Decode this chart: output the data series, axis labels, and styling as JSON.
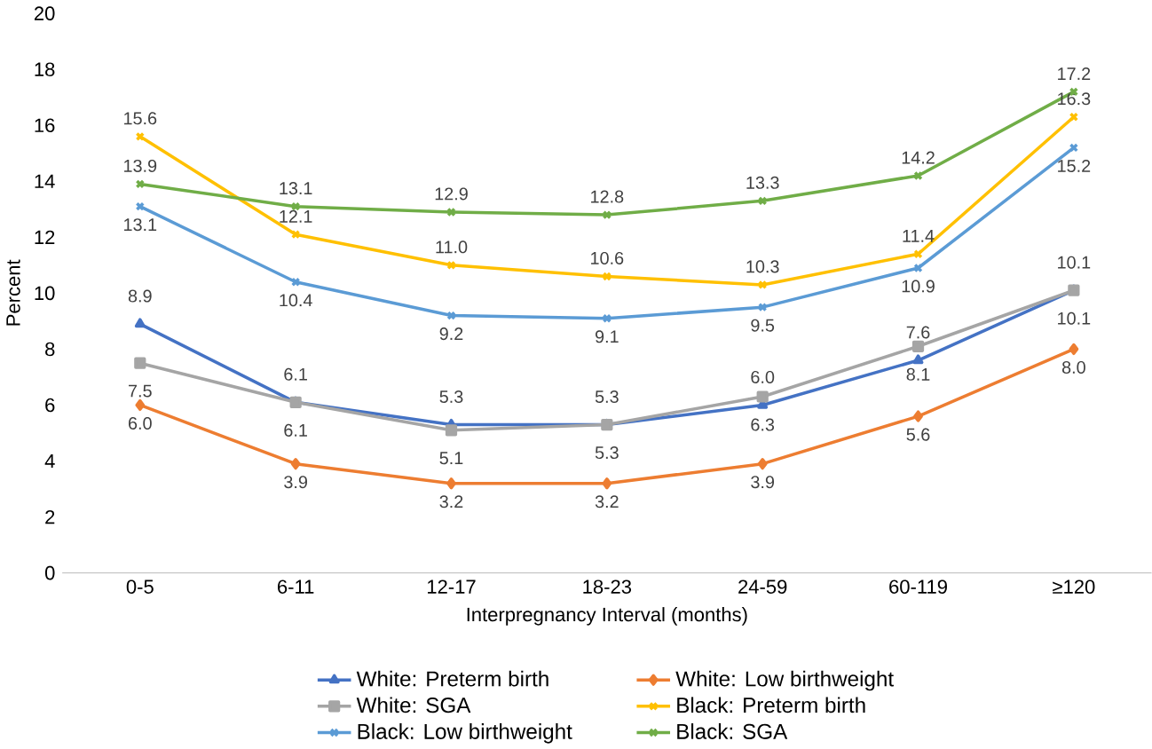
{
  "chart_data": {
    "type": "line",
    "xlabel": "Interpregnancy Interval (months)",
    "ylabel": "Percent",
    "categories": [
      "0-5",
      "6-11",
      "12-17",
      "18-23",
      "24-59",
      "60-119",
      "≥120"
    ],
    "series": [
      {
        "name": "White: Preterm birth",
        "color": "#4472c4",
        "marker": "triangle",
        "values": [
          8.9,
          6.1,
          5.3,
          5.3,
          6.0,
          7.6,
          10.1
        ],
        "value_labels": [
          "8.9",
          "6.1",
          "5.3",
          "5.3",
          "6.0",
          "7.6",
          "10.1"
        ]
      },
      {
        "name": "White: Low birthweight",
        "color": "#ed7d31",
        "marker": "diamond",
        "values": [
          6.0,
          3.9,
          3.2,
          3.2,
          3.9,
          5.6,
          8.0
        ],
        "value_labels": [
          "6.0",
          "3.9",
          "3.2",
          "3.2",
          "3.9",
          "5.6",
          "8.0"
        ]
      },
      {
        "name": "White: SGA",
        "color": "#a5a5a5",
        "marker": "square",
        "values": [
          7.5,
          6.1,
          5.1,
          5.3,
          6.3,
          8.1,
          10.1
        ],
        "value_labels": [
          "7.5",
          "6.1",
          "5.1",
          "5.3",
          "6.3",
          "8.1",
          "10.1"
        ]
      },
      {
        "name": "Black: Preterm birth",
        "color": "#ffc000",
        "marker": "cross",
        "values": [
          15.6,
          12.1,
          11.0,
          10.6,
          10.3,
          11.4,
          16.3
        ],
        "value_labels": [
          "15.6",
          "12.1",
          "11.0",
          "10.6",
          "10.3",
          "11.4",
          "16.3"
        ]
      },
      {
        "name": "Black: Low birthweight",
        "color": "#5b9bd5",
        "marker": "cross",
        "values": [
          13.1,
          10.4,
          9.2,
          9.1,
          9.5,
          10.9,
          15.2
        ],
        "value_labels": [
          "13.1",
          "10.4",
          "9.2",
          "9.1",
          "9.5",
          "10.9",
          "15.2"
        ]
      },
      {
        "name": "Black: SGA",
        "color": "#70ad47",
        "marker": "cross",
        "values": [
          13.9,
          13.1,
          12.9,
          12.8,
          13.3,
          14.2,
          17.2
        ],
        "value_labels": [
          "13.9",
          "13.1",
          "12.9",
          "12.8",
          "13.3",
          "14.2",
          "17.2"
        ]
      }
    ],
    "ylim": [
      0,
      20
    ],
    "yticks": [
      0,
      2,
      4,
      6,
      8,
      10,
      12,
      14,
      16,
      18,
      20
    ],
    "legend": "bottom",
    "grid": false
  }
}
